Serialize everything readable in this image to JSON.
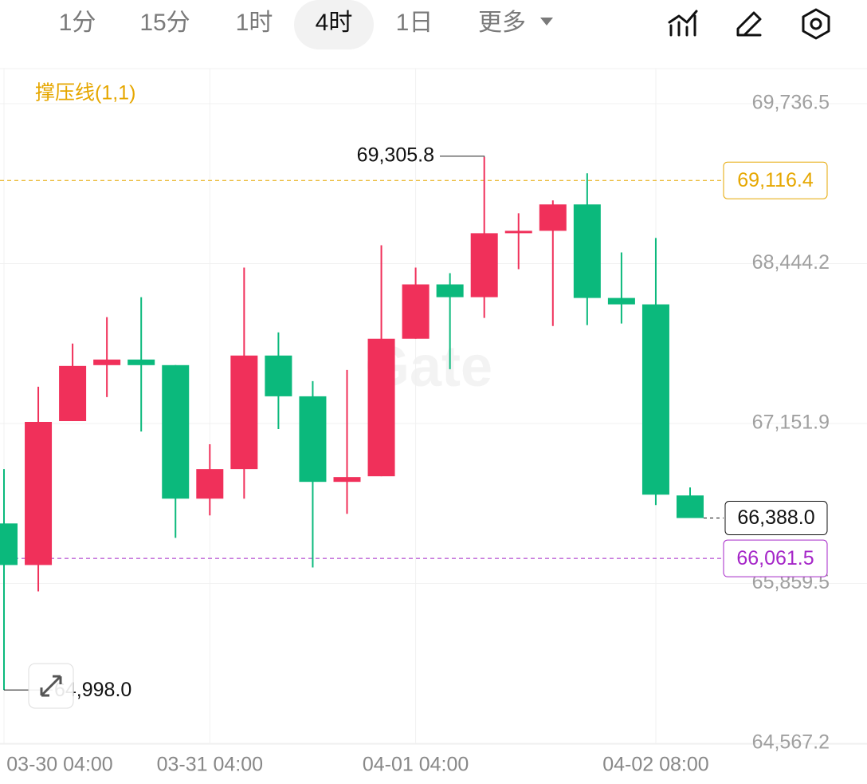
{
  "ui": {
    "tabs": [
      "1分",
      "15分",
      "1时",
      "4时",
      "1日",
      "更多"
    ],
    "selected_tab": 3,
    "indicator": "撑压线(1,1)",
    "watermark": "Gate"
  },
  "chart_data": {
    "type": "candlestick",
    "categories": [
      "03-30 04:00",
      null,
      null,
      null,
      null,
      null,
      "03-31 04:00",
      null,
      null,
      null,
      null,
      null,
      "04-01 04:00",
      null,
      null,
      null,
      null,
      null,
      null,
      "04-02 08:00",
      null
    ],
    "up_color": "#f0305a",
    "down_color": "#0bb97c",
    "series": [
      {
        "open": [
          66344.2,
          66008.2,
          67171.3,
          67623.6,
          67668.8,
          67623.6,
          66544.5,
          66783.6,
          67701.1,
          67371.6,
          66680.2,
          66725.4,
          67836.8,
          68276.2,
          68172.8,
          68696.2,
          68709.1,
          68922.4,
          68166.4,
          68114.7,
          66570.4
        ],
        "high": [
          66783.6,
          67449.1,
          67798.0,
          68011.3,
          68172.8,
          67623.6,
          66983.9,
          68411.9,
          67888.5,
          67494.4,
          67584.8,
          68592.8,
          68411.9,
          68366.7,
          69305.8,
          68851.3,
          68954.7,
          69174.3,
          68534.7,
          68651.0,
          66635.0
        ],
        "low": [
          64998.0,
          65795.0,
          67171.3,
          67365.1,
          67087.3,
          66227.9,
          66408.8,
          66544.5,
          67106.7,
          65988.8,
          66421.8,
          66725.4,
          67836.8,
          67591.3,
          68004.8,
          68399.0,
          67940.2,
          67946.7,
          67959.6,
          66492.8,
          66388.0
        ],
        "close": [
          66008.2,
          67164.8,
          67617.1,
          67668.8,
          67623.6,
          66544.5,
          66783.6,
          67701.1,
          67371.6,
          66680.2,
          66719.0,
          67836.8,
          68276.2,
          68172.8,
          68689.7,
          68709.1,
          68922.4,
          68166.4,
          68114.7,
          66576.8,
          66388.0
        ]
      }
    ],
    "ylim": [
      64567.2,
      69736.5
    ],
    "yticks": [
      {
        "value": 64567.2,
        "label": "64,567.2"
      },
      {
        "value": 65859.5,
        "label": "65,859.5"
      },
      {
        "value": 67151.9,
        "label": "67,151.9"
      },
      {
        "value": 68444.2,
        "label": "68,444.2"
      },
      {
        "value": 69736.5,
        "label": "69,736.5"
      }
    ],
    "grid": true,
    "high_label": {
      "value": 69305.8,
      "label": "69,305.8",
      "index": 14
    },
    "low_label": {
      "value": 64998.0,
      "label": "64,998.0",
      "index": 0
    },
    "resistance": {
      "value": 69116.4,
      "label": "69,116.4",
      "color": "#e6a700"
    },
    "support": {
      "value": 66061.5,
      "label": "66,061.5",
      "color": "#a526c8"
    },
    "last_price": {
      "value": 66388.0,
      "label": "66,388.0",
      "color": "#111111"
    }
  }
}
